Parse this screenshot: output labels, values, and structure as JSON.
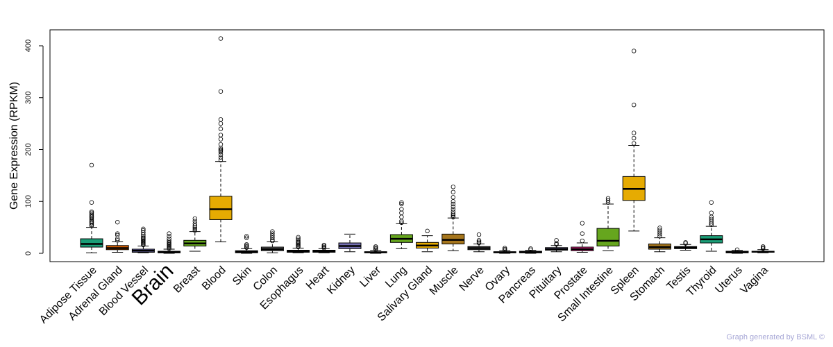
{
  "chart_data": {
    "type": "boxplot",
    "ylabel": "Gene Expression (RPKM)",
    "ylim": [
      -10,
      430
    ],
    "yticks": [
      0,
      100,
      200,
      300,
      400
    ],
    "highlight": "Brain",
    "highlight_color": "#ff0000",
    "tissues": [
      {
        "name": "Adipose Tissue",
        "color": "#1b9e77",
        "whisker_low": 1,
        "q1": 12,
        "median": 18,
        "q3": 28,
        "whisker_high": 50,
        "outliers": [
          53,
          55,
          58,
          60,
          62,
          65,
          68,
          70,
          72,
          75,
          78,
          80,
          98,
          170
        ]
      },
      {
        "name": "Adrenal Gland",
        "color": "#d95f02",
        "whisker_low": 2,
        "q1": 7,
        "median": 10,
        "q3": 15,
        "whisker_high": 22,
        "outliers": [
          25,
          28,
          35,
          38,
          60
        ]
      },
      {
        "name": "Blood Vessel",
        "color": "#7570b3",
        "whisker_low": 1,
        "q1": 2,
        "median": 5,
        "q3": 8,
        "whisker_high": 14,
        "outliers": [
          16,
          18,
          20,
          22,
          24,
          26,
          28,
          30,
          33,
          36,
          40,
          44,
          47
        ]
      },
      {
        "name": "Brain",
        "color": "#e7298a",
        "whisker_low": 0,
        "q1": 1,
        "median": 2,
        "q3": 4,
        "whisker_high": 8,
        "outliers": [
          9,
          11,
          13,
          15,
          17,
          19,
          21,
          24,
          28,
          33,
          38
        ]
      },
      {
        "name": "Breast",
        "color": "#66a61e",
        "whisker_low": 4,
        "q1": 14,
        "median": 19,
        "q3": 25,
        "whisker_high": 42,
        "outliers": [
          44,
          47,
          50,
          53,
          57,
          62,
          67
        ]
      },
      {
        "name": "Blood",
        "color": "#e6ab02",
        "whisker_low": 22,
        "q1": 65,
        "median": 85,
        "q3": 110,
        "whisker_high": 177,
        "outliers": [
          180,
          185,
          190,
          195,
          198,
          200,
          203,
          210,
          220,
          228,
          240,
          250,
          258,
          312,
          414
        ]
      },
      {
        "name": "Skin",
        "color": "#a6761d",
        "whisker_low": 0,
        "q1": 1,
        "median": 3,
        "q3": 5,
        "whisker_high": 9,
        "outliers": [
          11,
          13,
          15,
          17,
          30,
          33
        ]
      },
      {
        "name": "Colon",
        "color": "#666666",
        "whisker_low": 1,
        "q1": 5,
        "median": 8,
        "q3": 12,
        "whisker_high": 22,
        "outliers": [
          24,
          26,
          30,
          34,
          38,
          42
        ]
      },
      {
        "name": "Esophagus",
        "color": "#1b9e77",
        "whisker_low": 1,
        "q1": 2,
        "median": 4,
        "q3": 6,
        "whisker_high": 10,
        "outliers": [
          12,
          14,
          16,
          18,
          20,
          22,
          25,
          28,
          31
        ]
      },
      {
        "name": "Heart",
        "color": "#d95f02",
        "whisker_low": 1,
        "q1": 2,
        "median": 4,
        "q3": 6,
        "whisker_high": 9,
        "outliers": [
          10,
          12,
          14,
          16
        ]
      },
      {
        "name": "Kidney",
        "color": "#7570b3",
        "whisker_low": 3,
        "q1": 9,
        "median": 14,
        "q3": 20,
        "whisker_high": 37,
        "outliers": []
      },
      {
        "name": "Liver",
        "color": "#e7298a",
        "whisker_low": 0,
        "q1": 1,
        "median": 2,
        "q3": 3,
        "whisker_high": 6,
        "outliers": [
          7,
          9,
          11,
          13
        ]
      },
      {
        "name": "Lung",
        "color": "#66a61e",
        "whisker_low": 9,
        "q1": 21,
        "median": 28,
        "q3": 36,
        "whisker_high": 57,
        "outliers": [
          59,
          62,
          70,
          78,
          85,
          95,
          98
        ]
      },
      {
        "name": "Salivary Gland",
        "color": "#e6ab02",
        "whisker_low": 3,
        "q1": 10,
        "median": 15,
        "q3": 21,
        "whisker_high": 34,
        "outliers": [
          43
        ]
      },
      {
        "name": "Muscle",
        "color": "#a6761d",
        "whisker_low": 5,
        "q1": 18,
        "median": 26,
        "q3": 37,
        "whisker_high": 68,
        "outliers": [
          70,
          73,
          76,
          80,
          85,
          90,
          95,
          100,
          108,
          118,
          128
        ]
      },
      {
        "name": "Nerve",
        "color": "#666666",
        "whisker_low": 3,
        "q1": 7,
        "median": 10,
        "q3": 13,
        "whisker_high": 18,
        "outliers": [
          20,
          22,
          25,
          36
        ]
      },
      {
        "name": "Ovary",
        "color": "#1b9e77",
        "whisker_low": 0,
        "q1": 1,
        "median": 2,
        "q3": 3,
        "whisker_high": 5,
        "outliers": [
          6,
          8,
          10
        ]
      },
      {
        "name": "Pancreas",
        "color": "#d95f02",
        "whisker_low": 0,
        "q1": 1,
        "median": 2,
        "q3": 4,
        "whisker_high": 6,
        "outliers": [
          7,
          9
        ]
      },
      {
        "name": "Pituitary",
        "color": "#7570b3",
        "whisker_low": 3,
        "q1": 6,
        "median": 8,
        "q3": 11,
        "whisker_high": 15,
        "outliers": [
          17,
          19,
          25
        ]
      },
      {
        "name": "Prostate",
        "color": "#e7298a",
        "whisker_low": 2,
        "q1": 5,
        "median": 8,
        "q3": 12,
        "whisker_high": 20,
        "outliers": [
          24,
          38,
          58
        ]
      },
      {
        "name": "Small Intestine",
        "color": "#66a61e",
        "whisker_low": 5,
        "q1": 14,
        "median": 24,
        "q3": 48,
        "whisker_high": 95,
        "outliers": [
          98,
          102,
          106
        ]
      },
      {
        "name": "Spleen",
        "color": "#e6ab02",
        "whisker_low": 43,
        "q1": 102,
        "median": 124,
        "q3": 148,
        "whisker_high": 208,
        "outliers": [
          212,
          222,
          232,
          286,
          390
        ]
      },
      {
        "name": "Stomach",
        "color": "#a6761d",
        "whisker_low": 3,
        "q1": 8,
        "median": 12,
        "q3": 18,
        "whisker_high": 30,
        "outliers": [
          33,
          37,
          41,
          45,
          49
        ]
      },
      {
        "name": "Testis",
        "color": "#666666",
        "whisker_low": 6,
        "q1": 9,
        "median": 11,
        "q3": 13,
        "whisker_high": 17,
        "outliers": [
          19,
          21
        ]
      },
      {
        "name": "Thyroid",
        "color": "#1b9e77",
        "whisker_low": 4,
        "q1": 20,
        "median": 27,
        "q3": 34,
        "whisker_high": 52,
        "outliers": [
          55,
          58,
          62,
          66,
          70,
          78,
          98
        ]
      },
      {
        "name": "Uterus",
        "color": "#d95f02",
        "whisker_low": 0,
        "q1": 1,
        "median": 2,
        "q3": 4,
        "whisker_high": 6,
        "outliers": [
          7
        ]
      },
      {
        "name": "Vagina",
        "color": "#7570b3",
        "whisker_low": 1,
        "q1": 2,
        "median": 3,
        "q3": 4,
        "whisker_high": 7,
        "outliers": [
          9,
          11,
          13
        ]
      }
    ]
  },
  "footer": {
    "credit": "Graph generated by BSML ©"
  }
}
